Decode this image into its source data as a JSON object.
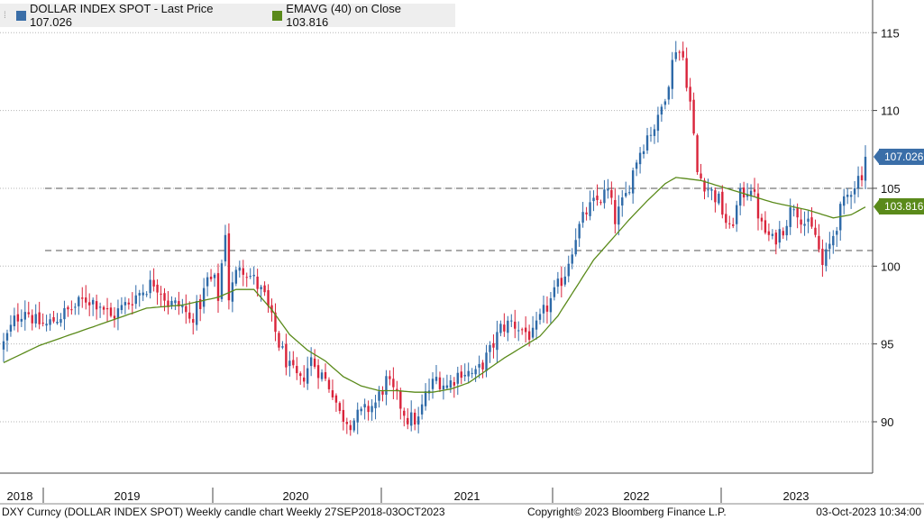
{
  "legend": {
    "series1_label": "DOLLAR INDEX SPOT - Last Price 107.026",
    "series1_color": "#3a6ea8",
    "series2_label": "EMAVG (40)  on Close 103.816",
    "series2_color": "#5a8a1a"
  },
  "footer": {
    "left": "DXY Curncy (DOLLAR INDEX SPOT) Weekly candle chart  Weekly 27SEP2018-03OCT2023",
    "center": "Copyright© 2023 Bloomberg Finance L.P.",
    "right": "03-Oct-2023 10:34:00"
  },
  "badges": {
    "last_price": "107.026",
    "ema": "103.816"
  },
  "chart_data": {
    "type": "candlestick",
    "title": "",
    "ylim": [
      87,
      117
    ],
    "y_ticks": [
      90,
      95,
      100,
      105,
      110,
      115
    ],
    "x_tick_labels": [
      "2018",
      "2019",
      "2020",
      "2021",
      "2022",
      "2023"
    ],
    "x_range": [
      "2018-09-27",
      "2023-10-03"
    ],
    "grid": true,
    "up_color": "#2e6aa8",
    "down_color": "#d9233a",
    "ema_color": "#5a8a1a",
    "reference_lines": [
      105.0,
      101.0
    ],
    "last_price": 107.026,
    "last_ema": 103.816,
    "close_path": [
      [
        0,
        95.0
      ],
      [
        3,
        96.5
      ],
      [
        6,
        97.3
      ],
      [
        9,
        96.4
      ],
      [
        12,
        96.2
      ],
      [
        15,
        96.7
      ],
      [
        18,
        97.1
      ],
      [
        20,
        97.4
      ],
      [
        23,
        97.9
      ],
      [
        27,
        97.6
      ],
      [
        30,
        96.7
      ],
      [
        34,
        97.5
      ],
      [
        38,
        98.3
      ],
      [
        42,
        99.0
      ],
      [
        44,
        98.5
      ],
      [
        46,
        97.6
      ],
      [
        50,
        97.4
      ],
      [
        52,
        96.5
      ],
      [
        55,
        97.6
      ],
      [
        57,
        99.1
      ],
      [
        59,
        99.0
      ],
      [
        60,
        98.0
      ],
      [
        62,
        102.3
      ],
      [
        63,
        98.0
      ],
      [
        66,
        100.2
      ],
      [
        70,
        99.1
      ],
      [
        73,
        98.0
      ],
      [
        75,
        96.5
      ],
      [
        77,
        95.0
      ],
      [
        80,
        93.4
      ],
      [
        83,
        92.5
      ],
      [
        86,
        94.0
      ],
      [
        89,
        93.0
      ],
      [
        92,
        92.0
      ],
      [
        94,
        90.5
      ],
      [
        97,
        90.0
      ],
      [
        100,
        90.5
      ],
      [
        104,
        91.2
      ],
      [
        107,
        92.6
      ],
      [
        110,
        91.5
      ],
      [
        113,
        90.2
      ],
      [
        116,
        90.1
      ],
      [
        118,
        91.7
      ],
      [
        121,
        92.8
      ],
      [
        124,
        92.3
      ],
      [
        128,
        93.3
      ],
      [
        132,
        93.0
      ],
      [
        136,
        94.5
      ],
      [
        139,
        96.0
      ],
      [
        142,
        96.4
      ],
      [
        145,
        95.9
      ],
      [
        148,
        95.5
      ],
      [
        151,
        97.0
      ],
      [
        154,
        98.2
      ],
      [
        157,
        99.6
      ],
      [
        160,
        102.0
      ],
      [
        163,
        103.5
      ],
      [
        166,
        104.2
      ],
      [
        169,
        104.8
      ],
      [
        171,
        103.0
      ],
      [
        174,
        104.5
      ],
      [
        177,
        106.9
      ],
      [
        180,
        108.4
      ],
      [
        183,
        109.3
      ],
      [
        186,
        112.0
      ],
      [
        188,
        114.1
      ],
      [
        190,
        113.4
      ],
      [
        192,
        110.5
      ],
      [
        194,
        106.0
      ],
      [
        197,
        105.0
      ],
      [
        200,
        104.2
      ],
      [
        203,
        102.2
      ],
      [
        206,
        104.5
      ],
      [
        209,
        105.2
      ],
      [
        212,
        102.5
      ],
      [
        215,
        101.6
      ],
      [
        218,
        102.5
      ],
      [
        221,
        104.0
      ],
      [
        224,
        102.8
      ],
      [
        227,
        102.0
      ],
      [
        229,
        100.0
      ],
      [
        231,
        101.3
      ],
      [
        234,
        103.5
      ],
      [
        237,
        105.0
      ],
      [
        240,
        106.0
      ],
      [
        241,
        107.0
      ]
    ],
    "ema_path": [
      [
        0,
        93.8
      ],
      [
        10,
        94.9
      ],
      [
        20,
        95.7
      ],
      [
        30,
        96.5
      ],
      [
        40,
        97.3
      ],
      [
        50,
        97.5
      ],
      [
        60,
        98.0
      ],
      [
        65,
        98.5
      ],
      [
        70,
        98.5
      ],
      [
        75,
        97.2
      ],
      [
        80,
        95.6
      ],
      [
        85,
        94.6
      ],
      [
        90,
        93.9
      ],
      [
        95,
        92.9
      ],
      [
        100,
        92.3
      ],
      [
        105,
        92.0
      ],
      [
        110,
        92.0
      ],
      [
        115,
        91.9
      ],
      [
        120,
        91.9
      ],
      [
        125,
        92.1
      ],
      [
        130,
        92.5
      ],
      [
        135,
        93.3
      ],
      [
        140,
        94.1
      ],
      [
        145,
        94.8
      ],
      [
        150,
        95.5
      ],
      [
        155,
        96.8
      ],
      [
        160,
        98.6
      ],
      [
        165,
        100.4
      ],
      [
        170,
        101.7
      ],
      [
        175,
        103.0
      ],
      [
        180,
        104.2
      ],
      [
        185,
        105.3
      ],
      [
        188,
        105.7
      ],
      [
        195,
        105.5
      ],
      [
        205,
        104.8
      ],
      [
        215,
        104.1
      ],
      [
        225,
        103.6
      ],
      [
        232,
        103.1
      ],
      [
        237,
        103.3
      ],
      [
        241,
        103.8
      ]
    ]
  }
}
